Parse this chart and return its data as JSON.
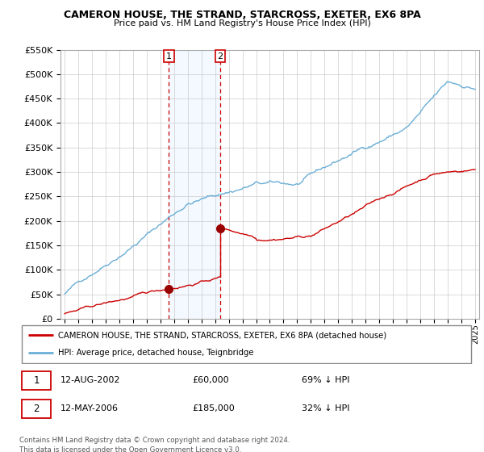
{
  "title": "CAMERON HOUSE, THE STRAND, STARCROSS, EXETER, EX6 8PA",
  "subtitle": "Price paid vs. HM Land Registry's House Price Index (HPI)",
  "legend_line1": "CAMERON HOUSE, THE STRAND, STARCROSS, EXETER, EX6 8PA (detached house)",
  "legend_line2": "HPI: Average price, detached house, Teignbridge",
  "transaction1_label": "1",
  "transaction2_label": "2",
  "transaction1_date": "12-AUG-2002",
  "transaction1_price": "£60,000",
  "transaction1_hpi": "69% ↓ HPI",
  "transaction2_date": "12-MAY-2006",
  "transaction2_price": "£185,000",
  "transaction2_hpi": "32% ↓ HPI",
  "footer": "Contains HM Land Registry data © Crown copyright and database right 2024.\nThis data is licensed under the Open Government Licence v3.0.",
  "hpi_color": "#6baed6",
  "price_color": "#cc0000",
  "marker_color": "#990000",
  "shade_color": "#ddeeff",
  "vline_color": "#cc0000",
  "ylim": [
    0,
    550000
  ],
  "yticks": [
    0,
    50000,
    100000,
    150000,
    200000,
    250000,
    300000,
    350000,
    400000,
    450000,
    500000,
    550000
  ],
  "transaction1_x": 2002.62,
  "transaction2_x": 2006.37,
  "transaction1_y": 60000,
  "transaction2_y": 185000,
  "xlim_left": 1994.7,
  "xlim_right": 2025.3
}
